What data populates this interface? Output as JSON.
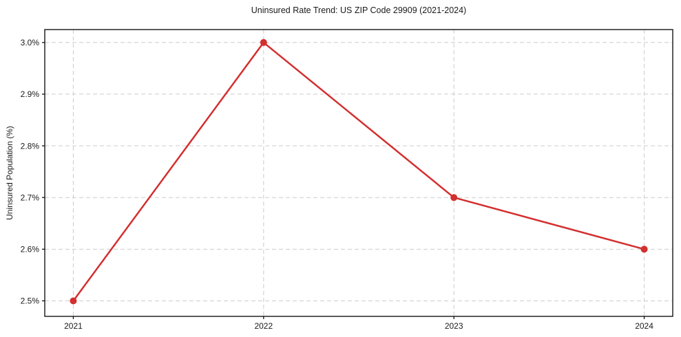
{
  "chart_data": {
    "type": "line",
    "title": "Uninsured Rate Trend: US ZIP Code 29909 (2021-2024)",
    "xlabel": "",
    "ylabel": "Uninsured Population (%)",
    "x": [
      2021,
      2022,
      2023,
      2024
    ],
    "values": [
      2.5,
      3.0,
      2.7,
      2.6
    ],
    "value_unit": "%",
    "xticks": [
      2021,
      2022,
      2023,
      2024
    ],
    "xtick_labels": [
      "2021",
      "2022",
      "2023",
      "2024"
    ],
    "yticks": [
      2.5,
      2.6,
      2.7,
      2.8,
      2.9,
      3.0
    ],
    "ytick_labels": [
      "2.5%",
      "2.6%",
      "2.7%",
      "2.8%",
      "2.9%",
      "3.0%"
    ],
    "xlim": [
      2020.85,
      2024.15
    ],
    "ylim": [
      2.47,
      3.025
    ],
    "grid": true,
    "grid_style": "dashed",
    "legend": "none",
    "line_color": "#d32f2f",
    "marker": "circle",
    "grid_color": "#cccccc",
    "axis_color": "#000000",
    "text_color": "#1a1a1a",
    "background_color": "#ffffff"
  }
}
